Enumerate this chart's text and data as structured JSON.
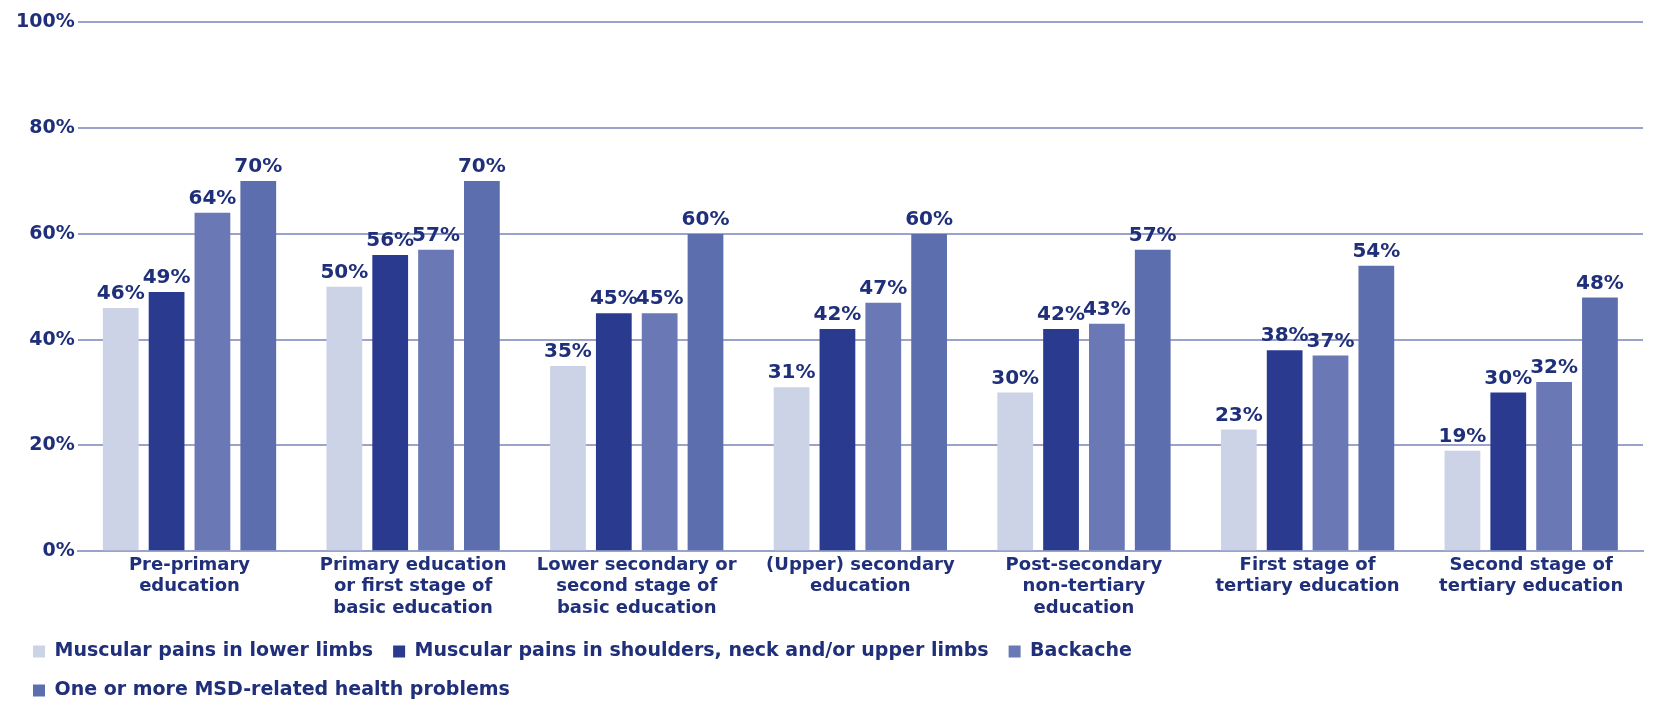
{
  "chart_data": {
    "type": "bar",
    "categories": [
      "Pre-primary education",
      "Primary education or first stage of basic education",
      "Lower secondary or second stage of basic education",
      "(Upper) secondary education",
      "Post-secondary non-tertiary education",
      "First stage of tertiary education",
      "Second stage of tertiary education"
    ],
    "series": [
      {
        "name": "Muscular pains in lower limbs",
        "color": "#cdd3e6",
        "values": [
          46,
          50,
          35,
          31,
          30,
          23,
          19
        ],
        "value_labels": [
          "46%",
          "50%",
          "35%",
          "31%",
          "30%",
          "23%",
          "19%"
        ]
      },
      {
        "name": "Muscular pains in shoulders, neck and/or upper limbs",
        "color": "#2a3a8f",
        "values": [
          49,
          56,
          45,
          42,
          42,
          38,
          30
        ],
        "value_labels": [
          "49%",
          "56%",
          "45%",
          "42%",
          "42%",
          "38%",
          "30%"
        ]
      },
      {
        "name": "Backache",
        "color": "#6a79b5",
        "values": [
          64,
          57,
          45,
          47,
          43,
          37,
          32
        ],
        "value_labels": [
          "64%",
          "57%",
          "45%",
          "47%",
          "43%",
          "37%",
          "32%"
        ]
      },
      {
        "name": "One or more MSD-related health problems",
        "color": "#5d6eae",
        "values": [
          70,
          70,
          60,
          60,
          57,
          54,
          48
        ],
        "value_labels": [
          "70%",
          "70%",
          "60%",
          "60%",
          "57%",
          "54%",
          "48%"
        ]
      }
    ],
    "ylim": [
      0,
      100
    ],
    "yticks": [
      {
        "value": 0,
        "label": "0%"
      },
      {
        "value": 20,
        "label": "20%"
      },
      {
        "value": 40,
        "label": "40%"
      },
      {
        "value": 60,
        "label": "60%"
      },
      {
        "value": 80,
        "label": "80%"
      },
      {
        "value": 100,
        "label": "100%"
      }
    ],
    "grid": "y",
    "legend": "bottom"
  }
}
